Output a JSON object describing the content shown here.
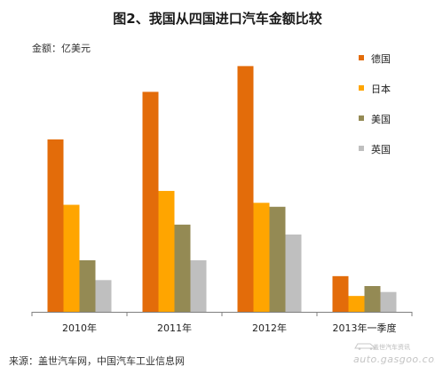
{
  "chart_data": {
    "type": "bar",
    "title": "图2、我国从四国进口汽车金额比较",
    "unit_label": "金额：亿美元",
    "categories": [
      "2010年",
      "2011年",
      "2012年",
      "2013年一季度"
    ],
    "series": [
      {
        "name": "德国",
        "color": "#e36c0a",
        "values": [
          87,
          111,
          124,
          18
        ]
      },
      {
        "name": "日本",
        "color": "#ffa500",
        "values": [
          54,
          61,
          55,
          8
        ]
      },
      {
        "name": "美国",
        "color": "#948a54",
        "values": [
          26,
          44,
          53,
          13
        ]
      },
      {
        "name": "英国",
        "color": "#bfbfbf",
        "values": [
          16,
          26,
          39,
          10
        ]
      }
    ],
    "ylim": [
      0,
      130
    ],
    "grid": false,
    "legend": "right"
  },
  "source": "来源：盖世汽车网，中国汽车工业信息网",
  "watermark": {
    "url": "auto.gasgoo.com",
    "tagline": "盖世汽车资讯"
  }
}
